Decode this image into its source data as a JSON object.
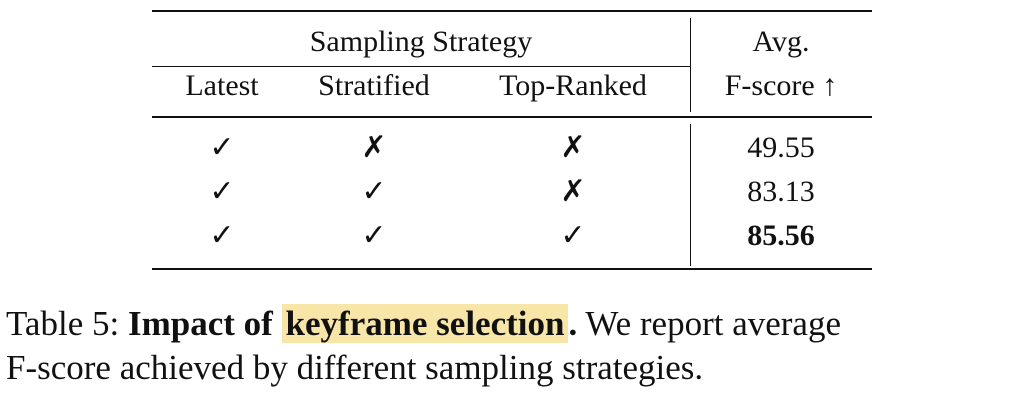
{
  "table": {
    "group_header": "Sampling Strategy",
    "columns": [
      "Latest",
      "Stratified",
      "Top-Ranked"
    ],
    "metric_header_line1": "Avg.",
    "metric_header_line2": "F-score ↑",
    "rows": [
      {
        "latest": "✓",
        "stratified": "✗",
        "top_ranked": "✗",
        "fscore": "49.55",
        "best": false
      },
      {
        "latest": "✓",
        "stratified": "✓",
        "top_ranked": "✗",
        "fscore": "83.13",
        "best": false
      },
      {
        "latest": "✓",
        "stratified": "✓",
        "top_ranked": "✓",
        "fscore": "85.56",
        "best": true
      }
    ]
  },
  "caption": {
    "label": "Table 5:",
    "bold_lead": "Impact of",
    "highlight": "keyframe selection",
    "bold_period": ".",
    "rest_line1": "We report average",
    "rest_line2": "F-score achieved by different sampling strategies.",
    "highlight_color": "#f8e6a8"
  }
}
